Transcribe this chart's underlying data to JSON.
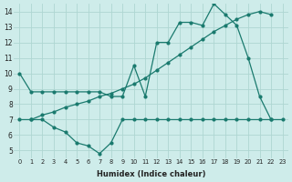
{
  "series1_x": [
    0,
    1,
    2,
    3,
    4,
    5,
    6,
    7,
    8,
    9,
    10,
    11,
    12,
    13,
    14,
    15,
    16,
    17,
    18,
    19,
    20,
    21,
    22
  ],
  "series1_y": [
    10,
    8.8,
    8.8,
    8.8,
    8.8,
    8.8,
    8.8,
    8.8,
    8.5,
    8.5,
    10.5,
    8.5,
    12.0,
    12.0,
    13.3,
    13.3,
    13.1,
    14.5,
    13.8,
    13.1,
    11.0,
    8.5,
    7.0
  ],
  "series2_x": [
    0,
    1,
    2,
    3,
    4,
    5,
    6,
    7,
    8,
    9,
    10,
    11,
    12,
    13,
    14,
    15,
    16,
    17,
    18,
    19,
    20,
    21,
    22
  ],
  "series2_y": [
    7.0,
    7.0,
    7.3,
    7.5,
    7.8,
    8.0,
    8.2,
    8.5,
    8.7,
    9.0,
    9.3,
    9.7,
    10.2,
    10.7,
    11.2,
    11.7,
    12.2,
    12.7,
    13.1,
    13.5,
    13.8,
    14.0,
    13.8
  ],
  "series3_x": [
    1,
    2,
    3,
    4,
    5,
    6,
    7,
    8,
    9,
    10,
    11,
    12,
    13,
    14,
    15,
    16,
    17,
    18,
    19,
    20,
    21,
    22,
    23
  ],
  "series3_y": [
    7.0,
    7.0,
    6.5,
    6.2,
    5.5,
    5.3,
    4.8,
    5.5,
    7.0,
    7.0,
    7.0,
    7.0,
    7.0,
    7.0,
    7.0,
    7.0,
    7.0,
    7.0,
    7.0,
    7.0,
    7.0,
    7.0,
    7.0
  ],
  "line_color": "#1a7a6e",
  "bg_color": "#ceecea",
  "grid_color": "#aed6d2",
  "xlabel": "Humidex (Indice chaleur)",
  "xlim": [
    -0.5,
    23.5
  ],
  "ylim": [
    4.5,
    14.5
  ],
  "yticks": [
    5,
    6,
    7,
    8,
    9,
    10,
    11,
    12,
    13,
    14
  ],
  "xticks": [
    0,
    1,
    2,
    3,
    4,
    5,
    6,
    7,
    8,
    9,
    10,
    11,
    12,
    13,
    14,
    15,
    16,
    17,
    18,
    19,
    20,
    21,
    22,
    23
  ],
  "xtick_labels": [
    "0",
    "1",
    "2",
    "3",
    "4",
    "5",
    "6",
    "7",
    "8",
    "9",
    "10",
    "11",
    "12",
    "13",
    "14",
    "15",
    "16",
    "17",
    "18",
    "19",
    "20",
    "21",
    "22",
    "23"
  ]
}
